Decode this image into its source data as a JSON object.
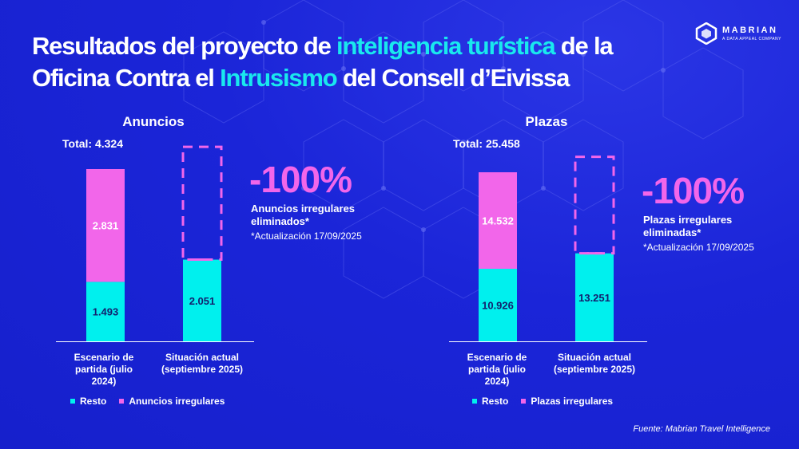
{
  "header": {
    "title_parts": [
      "Resultados del proyecto de ",
      "inteligencia turística",
      " de la Oficina Contra el ",
      "Intrusismo",
      " del Consell d’Eivissa"
    ]
  },
  "logo": {
    "name": "MABRIAN",
    "tagline": "A DATA APPEAL COMPANY"
  },
  "colors": {
    "resto": "#00f0ee",
    "irregular": "#f266ea",
    "background": "#1a24d6",
    "highlight": "#19e8ee"
  },
  "chart_data": [
    {
      "type": "bar",
      "stacked": true,
      "title": "Anuncios",
      "total_label": "Total: 4.324",
      "categories": [
        [
          "Escenario de",
          "partida (julio",
          "2024)"
        ],
        [
          "Situación actual",
          "(septiembre 2025)"
        ]
      ],
      "series": [
        {
          "name": "Resto",
          "values": [
            1493,
            2051
          ],
          "labels": [
            "1.493",
            "2.051"
          ]
        },
        {
          "name": "Anuncios irregulares",
          "values": [
            2831,
            0
          ],
          "labels": [
            "2.831",
            ""
          ]
        }
      ],
      "ylim": [
        0,
        4324
      ],
      "change": {
        "value": "-100%",
        "description_lines": [
          "Anuncios irregulares",
          "eliminados*"
        ],
        "note": "*Actualización 17/09/2025"
      }
    },
    {
      "type": "bar",
      "stacked": true,
      "title": "Plazas",
      "total_label": "Total: 25.458",
      "categories": [
        [
          "Escenario de",
          "partida (julio",
          "2024)"
        ],
        [
          "Situación actual",
          "(septiembre 2025)"
        ]
      ],
      "series": [
        {
          "name": "Resto",
          "values": [
            10926,
            13251
          ],
          "labels": [
            "10.926",
            "13.251"
          ]
        },
        {
          "name": "Plazas irregulares",
          "values": [
            14532,
            0
          ],
          "labels": [
            "14.532",
            ""
          ]
        }
      ],
      "ylim": [
        0,
        25458
      ],
      "change": {
        "value": "-100%",
        "description_lines": [
          "Plazas irregulares",
          "eliminadas*"
        ],
        "note": "*Actualización 17/09/2025"
      }
    }
  ],
  "source": "Fuente: Mabrian Travel Intelligence"
}
